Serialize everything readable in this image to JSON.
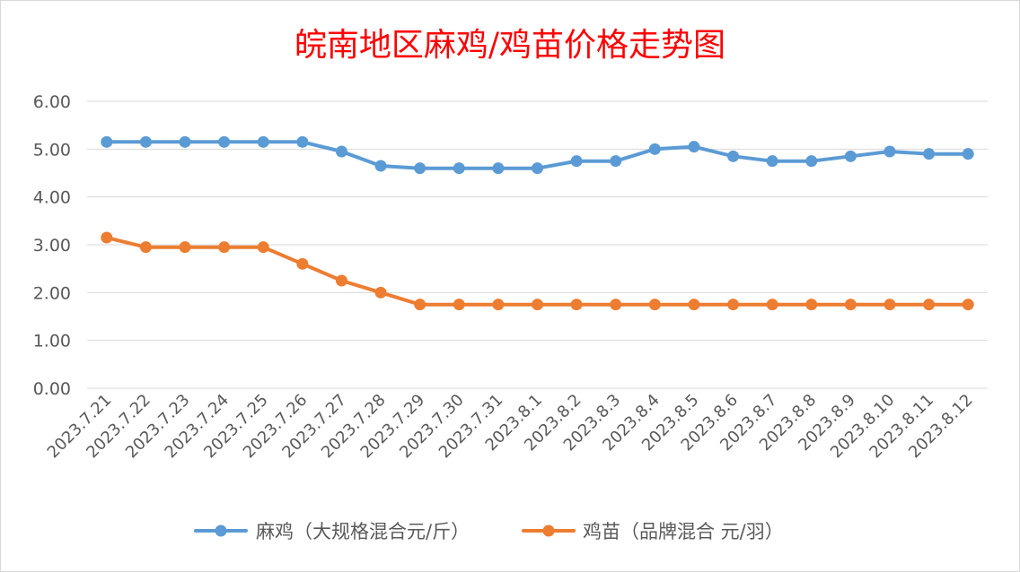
{
  "chart_data": {
    "type": "line",
    "title": "皖南地区麻鸡/鸡苗价格走势图",
    "xlabel": "",
    "ylabel": "",
    "ylim": [
      0,
      6
    ],
    "yticks": [
      "0.00",
      "1.00",
      "2.00",
      "3.00",
      "4.00",
      "5.00",
      "6.00"
    ],
    "grid": true,
    "legend_position": "bottom",
    "categories": [
      "2023.7.21",
      "2023.7.22",
      "2023.7.23",
      "2023.7.24",
      "2023.7.25",
      "2023.7.26",
      "2023.7.27",
      "2023.7.28",
      "2023.7.29",
      "2023.7.30",
      "2023.7.31",
      "2023.8.1",
      "2023.8.2",
      "2023.8.3",
      "2023.8.4",
      "2023.8.5",
      "2023.8.6",
      "2023.8.7",
      "2023.8.8",
      "2023.8.9",
      "2023.8.10",
      "2023.8.11",
      "2023.8.12"
    ],
    "series": [
      {
        "name": "麻鸡（大规格混合元/斤）",
        "color": "#5b9bd5",
        "values": [
          5.15,
          5.15,
          5.15,
          5.15,
          5.15,
          5.15,
          4.95,
          4.65,
          4.6,
          4.6,
          4.6,
          4.6,
          4.75,
          4.75,
          5.0,
          5.05,
          4.85,
          4.75,
          4.75,
          4.85,
          4.95,
          4.9,
          4.9
        ]
      },
      {
        "name": "鸡苗（品牌混合 元/羽）",
        "color": "#ed7d31",
        "values": [
          3.15,
          2.95,
          2.95,
          2.95,
          2.95,
          2.6,
          2.25,
          2.0,
          1.75,
          1.75,
          1.75,
          1.75,
          1.75,
          1.75,
          1.75,
          1.75,
          1.75,
          1.75,
          1.75,
          1.75,
          1.75,
          1.75,
          1.75
        ]
      }
    ]
  }
}
